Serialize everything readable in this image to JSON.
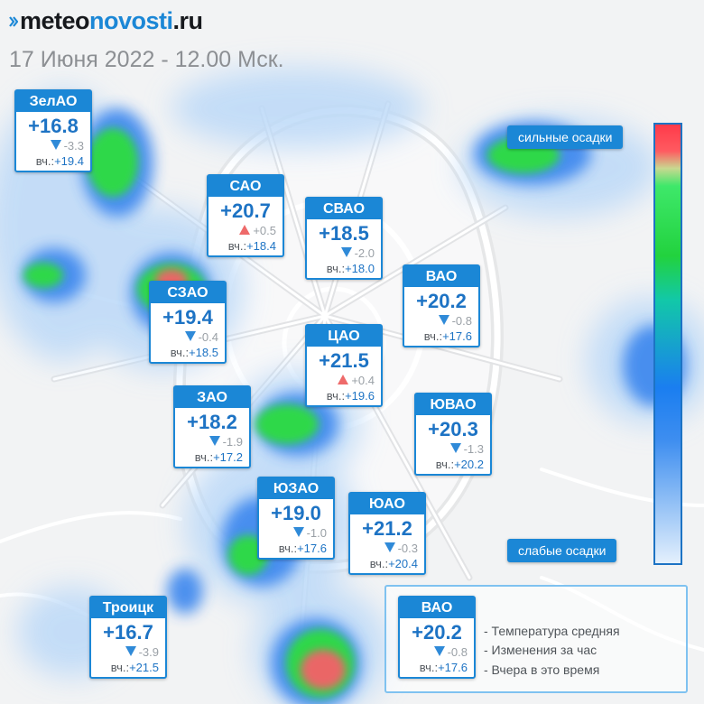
{
  "header": {
    "logo_part1": "meteo",
    "logo_part2": "novosti",
    "logo_part3": ".ru",
    "date_line": "17 Июня 2022 - 12.00 Мск."
  },
  "colors": {
    "brand_blue": "#1b87d6",
    "temp_blue": "#1d73c4",
    "arrow_down": "#2f8ad8",
    "arrow_up": "#ee6a6a"
  },
  "districts": [
    {
      "name": "ЗелАО",
      "temp": "+16.8",
      "trend": "down",
      "change": "-3.3",
      "yesterday_label": "вч.:",
      "yesterday": "+19.4"
    },
    {
      "name": "САО",
      "temp": "+20.7",
      "trend": "up",
      "change": "+0.5",
      "yesterday_label": "вч.:",
      "yesterday": "+18.4"
    },
    {
      "name": "СВАО",
      "temp": "+18.5",
      "trend": "down",
      "change": "-2.0",
      "yesterday_label": "вч.:",
      "yesterday": "+18.0"
    },
    {
      "name": "ВАО",
      "temp": "+20.2",
      "trend": "down",
      "change": "-0.8",
      "yesterday_label": "вч.:",
      "yesterday": "+17.6"
    },
    {
      "name": "СЗАО",
      "temp": "+19.4",
      "trend": "down",
      "change": "-0.4",
      "yesterday_label": "вч.:",
      "yesterday": "+18.5"
    },
    {
      "name": "ЦАО",
      "temp": "+21.5",
      "trend": "up",
      "change": "+0.4",
      "yesterday_label": "вч.:",
      "yesterday": "+19.6"
    },
    {
      "name": "ЗАО",
      "temp": "+18.2",
      "trend": "down",
      "change": "-1.9",
      "yesterday_label": "вч.:",
      "yesterday": "+17.2"
    },
    {
      "name": "ЮВАО",
      "temp": "+20.3",
      "trend": "down",
      "change": "-1.3",
      "yesterday_label": "вч.:",
      "yesterday": "+20.2"
    },
    {
      "name": "ЮЗАО",
      "temp": "+19.0",
      "trend": "down",
      "change": "-1.0",
      "yesterday_label": "вч.:",
      "yesterday": "+17.6"
    },
    {
      "name": "ЮАО",
      "temp": "+21.2",
      "trend": "down",
      "change": "-0.3",
      "yesterday_label": "вч.:",
      "yesterday": "+20.4"
    },
    {
      "name": "Троицк",
      "temp": "+16.7",
      "trend": "down",
      "change": "-3.9",
      "yesterday_label": "вч.:",
      "yesterday": "+21.5"
    }
  ],
  "precip_scale": {
    "top_label": "сильные осадки",
    "bottom_label": "слабые осадки"
  },
  "legend": {
    "sample": {
      "name": "ВАО",
      "temp": "+20.2",
      "trend": "down",
      "change": "-0.8",
      "yesterday_label": "вч.:",
      "yesterday": "+17.6"
    },
    "lines": [
      "- Температура средняя",
      "- Изменения за час",
      "- Вчера в это время"
    ]
  }
}
